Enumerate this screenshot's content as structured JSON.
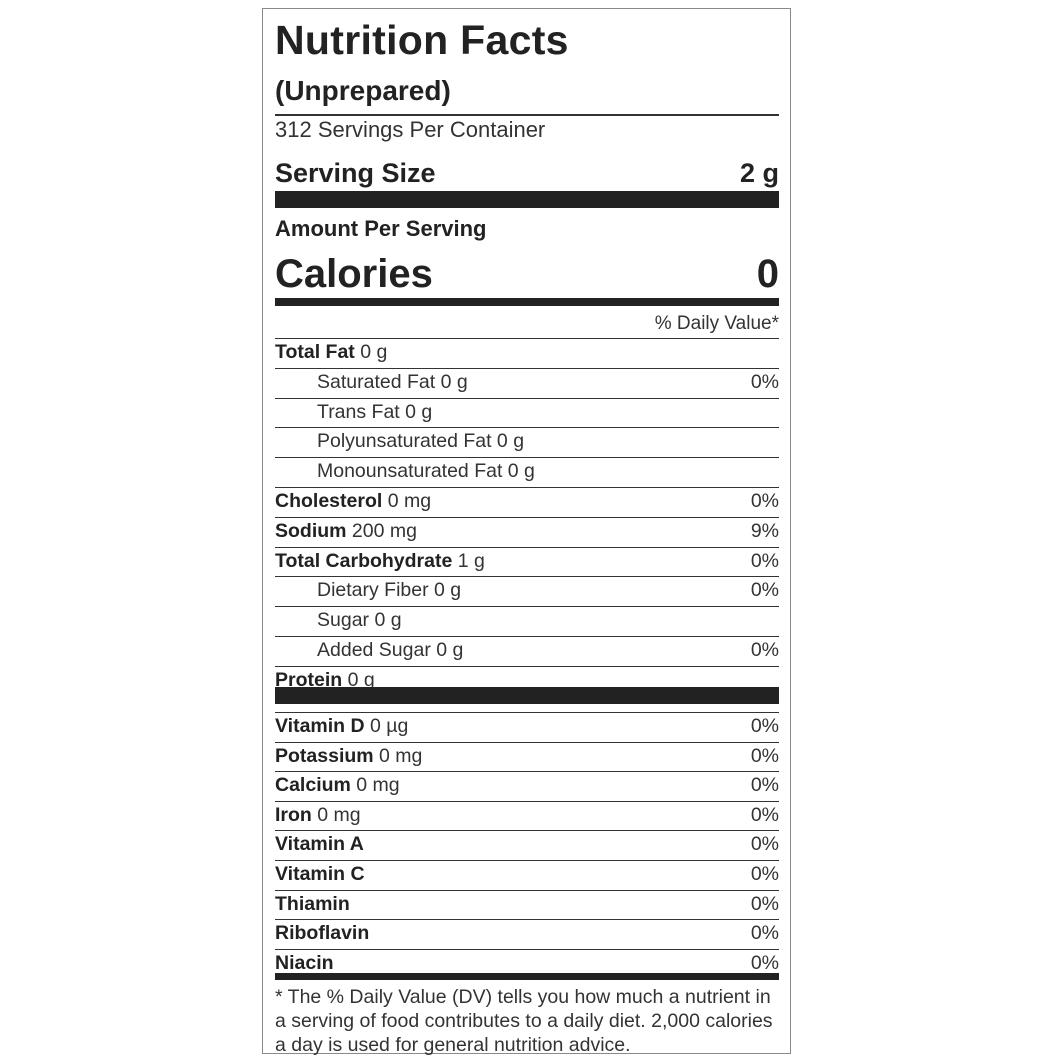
{
  "label": {
    "title": "Nutrition Facts",
    "subtitle": "(Unprepared)",
    "servings": "312 Servings Per Container",
    "serving_size_label": "Serving Size",
    "serving_size_value": "2 g",
    "amount_per_serving": "Amount Per Serving",
    "calories_label": "Calories",
    "calories_value": "0",
    "dv_header": "% Daily Value*",
    "nutrients": [
      {
        "name": "Total Fat",
        "amount": " 0 g",
        "dv": ""
      },
      {
        "name": "Saturated Fat 0 g",
        "amount": "",
        "dv": "0%"
      },
      {
        "name": "Trans Fat 0 g",
        "amount": "",
        "dv": ""
      },
      {
        "name": "Polyunsaturated Fat 0 g",
        "amount": "",
        "dv": ""
      },
      {
        "name": "Monounsaturated Fat 0 g",
        "amount": "",
        "dv": ""
      },
      {
        "name": "Cholesterol",
        "amount": " 0 mg",
        "dv": "0%"
      },
      {
        "name": "Sodium",
        "amount": " 200 mg",
        "dv": "9%"
      },
      {
        "name": "Total Carbohydrate",
        "amount": " 1 g",
        "dv": "0%"
      },
      {
        "name": "Dietary Fiber 0 g",
        "amount": "",
        "dv": "0%"
      },
      {
        "name": "Sugar 0 g",
        "amount": "",
        "dv": ""
      },
      {
        "name": "Added Sugar 0 g",
        "amount": "",
        "dv": "0%"
      },
      {
        "name": "Protein",
        "amount": " 0 g",
        "dv": ""
      }
    ],
    "vitamins": [
      {
        "name": "Vitamin D",
        "amount": " 0 µg",
        "dv": "0%"
      },
      {
        "name": "Potassium",
        "amount": " 0 mg",
        "dv": "0%"
      },
      {
        "name": "Calcium",
        "amount": " 0 mg",
        "dv": "0%"
      },
      {
        "name": "Iron",
        "amount": " 0 mg",
        "dv": "0%"
      },
      {
        "name": "Vitamin A",
        "amount": "",
        "dv": "0%"
      },
      {
        "name": "Vitamin C",
        "amount": "",
        "dv": "0%"
      },
      {
        "name": "Thiamin",
        "amount": "",
        "dv": "0%"
      },
      {
        "name": "Riboflavin",
        "amount": "",
        "dv": "0%"
      },
      {
        "name": "Niacin",
        "amount": "",
        "dv": "0%"
      }
    ],
    "footnote": "* The % Daily Value (DV) tells you how much a nutrient in a serving of food contributes to a daily diet. 2,000 calories a day is used for general nutrition advice."
  }
}
